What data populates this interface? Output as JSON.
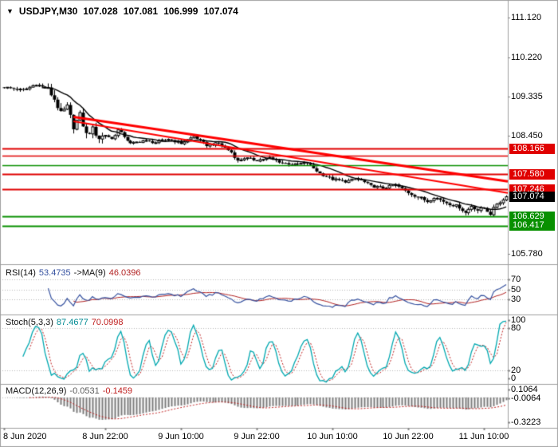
{
  "window": {
    "marker_icon": "▼",
    "symbol": "USDJPY,M30",
    "open": "107.028",
    "high": "107.081",
    "low": "106.999",
    "close": "107.074"
  },
  "colors": {
    "background": "#ffffff",
    "panel_border": "#a0a0a0",
    "axis_text": "#000000",
    "candle": "#000000",
    "candle_bull_fill": "#ffffff",
    "ma_line": "#000000",
    "level_red": "#e00000",
    "level_green": "#089000",
    "trend_red": "#ff0000",
    "current_price_bg": "#000000",
    "rsi_line": "#3652a0",
    "rsi_ma_line": "#b22222",
    "stoch_line": "#00a8b0",
    "stoch_signal_line": "#c02020",
    "macd_hist": "#7c7c7c",
    "macd_signal_line": "#c02020",
    "grid_dotted": "#b8b8b8",
    "badge_text": "#ffffff"
  },
  "x_axis": {
    "labels": [
      {
        "text": "8 Jun 2020",
        "candle": 0,
        "align": "left"
      },
      {
        "text": "8 Jun 22:00",
        "candle": 32
      },
      {
        "text": "9 Jun 10:00",
        "candle": 56
      },
      {
        "text": "9 Jun 22:00",
        "candle": 80
      },
      {
        "text": "10 Jun 10:00",
        "candle": 104
      },
      {
        "text": "10 Jun 22:00",
        "candle": 128
      },
      {
        "text": "11 Jun 10:00",
        "candle": 152
      }
    ]
  },
  "chart_data": [
    {
      "type": "candlestick",
      "title": "USDJPY,M30",
      "symbol": "USDJPY",
      "timeframe": "M30",
      "current": {
        "open": 107.028,
        "high": 107.081,
        "low": 106.999,
        "close": 107.074
      },
      "ylim": [
        105.55,
        111.45
      ],
      "y_ticks": [
        {
          "value": 111.12,
          "label": "111.120"
        },
        {
          "value": 110.22,
          "label": "110.220"
        },
        {
          "value": 109.335,
          "label": "109.335"
        },
        {
          "value": 108.45,
          "label": "108.450"
        },
        {
          "value": 105.78,
          "label": "105.780"
        }
      ],
      "candle_count": 160,
      "price_keypoints": [
        [
          0,
          109.55
        ],
        [
          6,
          109.48
        ],
        [
          10,
          109.62
        ],
        [
          14,
          109.5
        ],
        [
          16,
          109.28
        ],
        [
          18,
          108.95
        ],
        [
          20,
          109.1
        ],
        [
          22,
          108.66
        ],
        [
          24,
          108.92
        ],
        [
          26,
          108.48
        ],
        [
          28,
          108.6
        ],
        [
          30,
          108.4
        ],
        [
          32,
          108.48
        ],
        [
          34,
          108.38
        ],
        [
          36,
          108.58
        ],
        [
          38,
          108.44
        ],
        [
          40,
          108.27
        ],
        [
          44,
          108.34
        ],
        [
          48,
          108.3
        ],
        [
          52,
          108.38
        ],
        [
          56,
          108.28
        ],
        [
          60,
          108.44
        ],
        [
          64,
          108.24
        ],
        [
          68,
          108.28
        ],
        [
          72,
          108.08
        ],
        [
          74,
          107.88
        ],
        [
          76,
          107.95
        ],
        [
          80,
          107.9
        ],
        [
          84,
          107.95
        ],
        [
          88,
          107.84
        ],
        [
          92,
          107.8
        ],
        [
          96,
          107.84
        ],
        [
          100,
          107.6
        ],
        [
          104,
          107.47
        ],
        [
          108,
          107.42
        ],
        [
          112,
          107.48
        ],
        [
          116,
          107.32
        ],
        [
          120,
          107.27
        ],
        [
          124,
          107.34
        ],
        [
          128,
          107.17
        ],
        [
          132,
          107.04
        ],
        [
          134,
          106.97
        ],
        [
          136,
          107.07
        ],
        [
          140,
          106.94
        ],
        [
          144,
          106.84
        ],
        [
          146,
          106.71
        ],
        [
          148,
          106.87
        ],
        [
          150,
          106.77
        ],
        [
          152,
          106.82
        ],
        [
          154,
          106.69
        ],
        [
          156,
          106.92
        ],
        [
          158,
          107.0
        ],
        [
          159,
          107.074
        ]
      ],
      "ma_period": 13,
      "horizontal_levels": [
        {
          "price": 108.166,
          "color": "red",
          "label": "108.166",
          "width": 2
        },
        {
          "price": 108.005,
          "color": "red",
          "label": null,
          "width": 1.5
        },
        {
          "price": 107.79,
          "color": "green",
          "label": null,
          "width": 1.5
        },
        {
          "price": 107.58,
          "color": "red",
          "label": "107.580",
          "width": 2
        },
        {
          "price": 107.246,
          "color": "red",
          "label": "107.246",
          "width": 2
        },
        {
          "price": 106.629,
          "color": "green",
          "label": "106.629",
          "width": 2
        },
        {
          "price": 106.417,
          "color": "green",
          "label": "106.417",
          "width": 2
        }
      ],
      "current_price": {
        "value": 107.074,
        "label": "107.074"
      },
      "trendlines": [
        {
          "from_candle": 22,
          "from_price": 108.88,
          "to_candle": 160,
          "to_price": 107.42,
          "width": 3
        },
        {
          "from_candle": 22,
          "from_price": 108.78,
          "to_candle": 160,
          "to_price": 107.16,
          "width": 2
        }
      ]
    },
    {
      "type": "line",
      "name": "RSI(14)",
      "value": "53.4735",
      "ma_label": "->MA(9)",
      "ma_value": "46.0396",
      "period": 14,
      "ma_period": 9,
      "ylim": [
        0,
        100
      ],
      "levels": [
        70,
        50,
        30
      ],
      "y_ticks": [
        {
          "value": 70,
          "label": "70"
        },
        {
          "value": 50,
          "label": "50"
        },
        {
          "value": 30,
          "label": "30"
        }
      ]
    },
    {
      "type": "line",
      "name": "Stoch(5,3,3)",
      "k_value": "87.4677",
      "d_value": "70.0998",
      "k_period": 5,
      "slowing": 3,
      "d_period": 3,
      "ylim": [
        0,
        100
      ],
      "levels": [
        80,
        20
      ],
      "y_ticks": [
        {
          "value": 100,
          "label": "100"
        },
        {
          "value": 80,
          "label": "80"
        },
        {
          "value": 20,
          "label": "20"
        },
        {
          "value": 0,
          "label": "0"
        }
      ]
    },
    {
      "type": "histogram",
      "name": "MACD(12,26,9)",
      "value": "-0.0531",
      "signal_value": "-0.1459",
      "fast_period": 12,
      "slow_period": 26,
      "signal_period": 9,
      "ylim": [
        -0.36,
        0.16
      ],
      "levels": [
        0
      ],
      "y_ticks": [
        {
          "value": 0.1064,
          "label": "0.1064"
        },
        {
          "value": -0.0064,
          "label": "-0.0064"
        },
        {
          "value": -0.3223,
          "label": "-0.3223"
        }
      ]
    }
  ]
}
